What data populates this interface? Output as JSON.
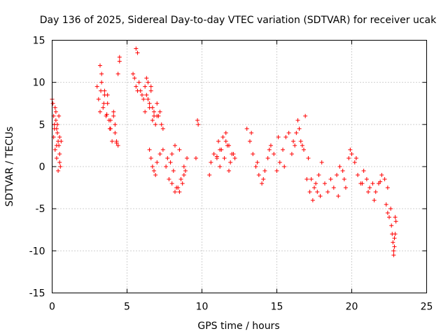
{
  "chart_data": {
    "type": "scatter",
    "title": "Day 136 of 2025, Sidereal Day-to-day VTEC variation (SDTVAR) for receiver ucak",
    "xlabel": "GPS time / hours",
    "ylabel": "SDTVAR / TECUs",
    "xlim": [
      0,
      25
    ],
    "ylim": [
      -15,
      15
    ],
    "xticks": [
      0,
      5,
      10,
      15,
      20,
      25
    ],
    "yticks": [
      -15,
      -10,
      -5,
      0,
      5,
      10,
      15
    ],
    "grid": true,
    "marker": "plus",
    "color": "#ff0000",
    "series": [
      {
        "name": "SDTVAR",
        "x": [
          0.0,
          0.05,
          0.1,
          0.15,
          0.2,
          0.25,
          0.3,
          0.35,
          0.4,
          0.45,
          0.5,
          0.55,
          0.6,
          0.1,
          0.2,
          0.3,
          0.4,
          0.5,
          0.25,
          0.35,
          0.45,
          0.15,
          0.3,
          0.5,
          3.0,
          3.1,
          3.2,
          3.3,
          3.4,
          3.5,
          3.6,
          3.7,
          3.8,
          3.9,
          4.0,
          4.1,
          4.2,
          4.3,
          4.4,
          4.5,
          3.2,
          3.3,
          3.5,
          3.7,
          3.9,
          4.1,
          4.2,
          4.3,
          4.4,
          4.5,
          3.25,
          3.45,
          3.65,
          3.85,
          5.6,
          5.7,
          5.4,
          5.5,
          5.6,
          5.7,
          5.8,
          5.9,
          6.0,
          6.1,
          6.2,
          6.3,
          6.4,
          6.5,
          6.6,
          6.7,
          6.8,
          6.9,
          7.0,
          7.1,
          7.2,
          7.3,
          7.4,
          6.2,
          6.4,
          6.6,
          6.8,
          7.0,
          6.3,
          6.5,
          6.7,
          6.5,
          6.6,
          6.7,
          6.8,
          6.9,
          7.0,
          7.2,
          7.4,
          7.6,
          7.8,
          8.0,
          8.2,
          8.4,
          8.6,
          8.8,
          7.7,
          7.9,
          8.1,
          8.3,
          8.5,
          8.7,
          8.9,
          8.0,
          8.2,
          8.5,
          8.8,
          9.0,
          9.7,
          9.75,
          9.6,
          10.5,
          10.6,
          10.8,
          11.0,
          11.2,
          11.4,
          11.6,
          11.8,
          12.0,
          12.2,
          11.1,
          11.3,
          11.5,
          11.7,
          11.9,
          11.2,
          11.6,
          12.1,
          11.0,
          11.8,
          13.0,
          13.2,
          13.4,
          13.6,
          13.8,
          14.0,
          14.2,
          14.4,
          14.6,
          14.8,
          15.0,
          15.2,
          15.4,
          15.6,
          15.8,
          16.0,
          16.2,
          16.4,
          16.6,
          16.8,
          17.0,
          17.2,
          17.4,
          17.6,
          17.8,
          18.0,
          13.3,
          13.7,
          14.1,
          14.5,
          15.1,
          15.5,
          16.1,
          16.5,
          16.9,
          17.1,
          17.5,
          17.9,
          16.3,
          16.7,
          17.3,
          17.7,
          18.2,
          18.4,
          18.6,
          18.8,
          19.0,
          19.2,
          19.4,
          19.6,
          19.8,
          20.0,
          20.2,
          20.4,
          20.6,
          20.8,
          21.0,
          21.2,
          21.4,
          21.6,
          21.8,
          22.0,
          22.2,
          22.4,
          19.1,
          19.5,
          19.9,
          20.3,
          20.7,
          21.1,
          21.5,
          21.9,
          22.3,
          22.4,
          22.5,
          22.6,
          22.65,
          22.7,
          22.75,
          22.8,
          22.85,
          22.9,
          22.95,
          22.9,
          22.85,
          22.8
        ],
        "y": [
          8.0,
          7.5,
          6.0,
          5.0,
          7.0,
          6.5,
          4.5,
          5.0,
          3.0,
          2.5,
          1.5,
          0.0,
          3.0,
          3.5,
          2.0,
          1.0,
          -0.5,
          0.5,
          5.5,
          4.0,
          6.0,
          4.5,
          2.5,
          3.5,
          9.5,
          8.0,
          12.0,
          10.0,
          7.0,
          9.0,
          6.0,
          8.5,
          5.5,
          4.5,
          3.0,
          6.0,
          4.0,
          3.0,
          2.5,
          12.5,
          6.5,
          11.0,
          8.5,
          7.5,
          5.5,
          6.5,
          5.0,
          2.8,
          11.0,
          13.0,
          9.0,
          7.5,
          6.2,
          4.5,
          14.0,
          13.5,
          11.0,
          10.5,
          9.5,
          9.0,
          10.0,
          9.0,
          8.5,
          8.0,
          9.5,
          10.5,
          8.0,
          7.5,
          9.0,
          7.0,
          6.0,
          5.0,
          7.5,
          6.0,
          6.5,
          5.0,
          4.5,
          6.5,
          10.0,
          9.5,
          6.5,
          6.0,
          8.5,
          7.0,
          5.5,
          2.0,
          1.0,
          0.0,
          -0.5,
          -1.0,
          0.5,
          1.5,
          2.0,
          0.0,
          -1.5,
          -2.0,
          -3.0,
          -2.5,
          -1.5,
          -1.0,
          1.0,
          0.5,
          -0.5,
          -2.5,
          -3.0,
          -2.0,
          -0.5,
          1.5,
          2.5,
          2.0,
          0.0,
          1.0,
          5.5,
          5.0,
          1.0,
          -1.0,
          0.5,
          1.5,
          1.0,
          2.0,
          3.5,
          4.0,
          2.5,
          1.5,
          1.0,
          3.0,
          2.0,
          1.0,
          2.5,
          0.5,
          0.0,
          3.0,
          1.5,
          1.2,
          -0.5,
          4.5,
          3.0,
          1.5,
          0.0,
          -1.0,
          -2.0,
          -0.5,
          1.0,
          2.5,
          1.5,
          -0.5,
          0.5,
          2.0,
          3.5,
          4.0,
          1.5,
          2.5,
          5.5,
          3.0,
          2.0,
          -1.5,
          -3.0,
          -4.0,
          -2.0,
          -1.0,
          0.5,
          4.0,
          0.5,
          -1.5,
          2.0,
          3.5,
          0.0,
          3.0,
          4.5,
          6.0,
          1.0,
          -2.5,
          -3.5,
          4.0,
          2.5,
          -1.5,
          -3.0,
          -2.0,
          -3.0,
          -1.5,
          -2.5,
          -1.0,
          0.0,
          -0.5,
          -2.5,
          1.0,
          1.5,
          0.5,
          -1.0,
          -2.0,
          -0.5,
          -1.5,
          -2.5,
          -2.0,
          -3.0,
          -2.0,
          -1.0,
          -1.5,
          -2.5,
          -3.5,
          -1.5,
          2.0,
          1.0,
          -2.0,
          -3.0,
          -4.0,
          -1.8,
          -4.5,
          -5.5,
          -6.0,
          -5.0,
          -7.0,
          -8.0,
          -9.0,
          -10.5,
          -9.5,
          -8.0,
          -6.5,
          -6.0,
          -8.5,
          -10.0
        ]
      }
    ]
  }
}
